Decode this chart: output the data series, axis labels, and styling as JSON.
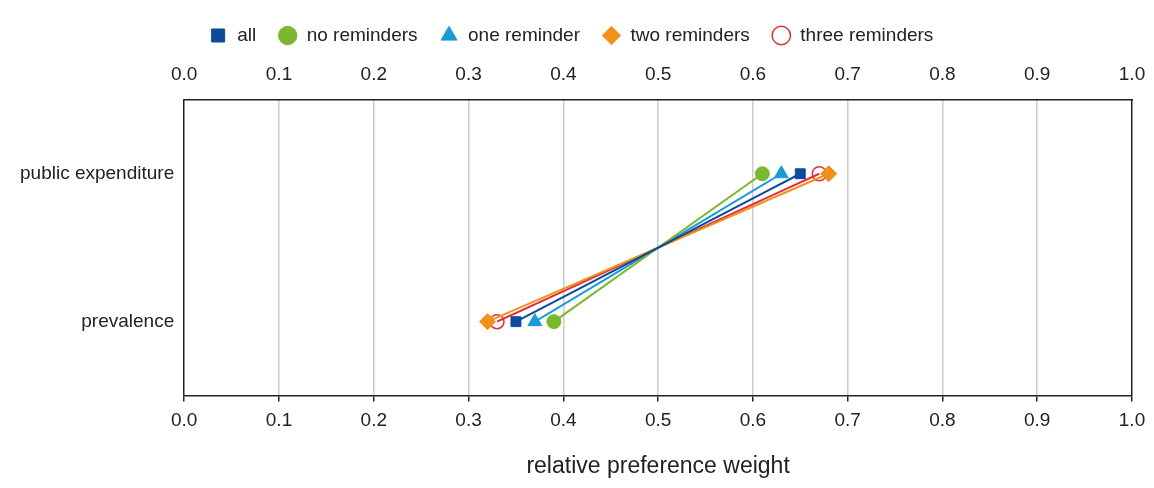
{
  "chart_data": {
    "type": "line",
    "orientation": "horizontal",
    "xlabel": "relative preference weight",
    "categories": [
      "public expenditure",
      "prevalence"
    ],
    "xlim": [
      0,
      1
    ],
    "xticks": [
      {
        "value": 0,
        "label": "0.0"
      },
      {
        "value": 0.1,
        "label": "0.1"
      },
      {
        "value": 0.2,
        "label": "0.2"
      },
      {
        "value": 0.3,
        "label": "0.3"
      },
      {
        "value": 0.4,
        "label": "0.4"
      },
      {
        "value": 0.5,
        "label": "0.5"
      },
      {
        "value": 0.6,
        "label": "0.6"
      },
      {
        "value": 0.7,
        "label": "0.7"
      },
      {
        "value": 0.8,
        "label": "0.8"
      },
      {
        "value": 0.9,
        "label": "0.9"
      },
      {
        "value": 1,
        "label": "1.0"
      }
    ],
    "x2lim": [
      0,
      1
    ],
    "x2ticks": [
      {
        "value": 0,
        "label": "0.0"
      },
      {
        "value": 0.1,
        "label": "0.1"
      },
      {
        "value": 0.2,
        "label": "0.2"
      },
      {
        "value": 0.3,
        "label": "0.3"
      },
      {
        "value": 0.4,
        "label": "0.4"
      },
      {
        "value": 0.5,
        "label": "0.5"
      },
      {
        "value": 0.6,
        "label": "0.6"
      },
      {
        "value": 0.7,
        "label": "0.7"
      },
      {
        "value": 0.8,
        "label": "0.8"
      },
      {
        "value": 0.9,
        "label": "0.9"
      },
      {
        "value": 1,
        "label": "1.0"
      }
    ],
    "grid": "x",
    "legend": "top",
    "line_style": "solid",
    "series": [
      {
        "name": "all",
        "color": "#0d4a9a",
        "marker": "square",
        "values": [
          0.65,
          0.35
        ]
      },
      {
        "name": "no reminders",
        "color": "#7ab82e",
        "marker": "circle",
        "values": [
          0.61,
          0.39
        ]
      },
      {
        "name": "one reminder",
        "color": "#1b9ad6",
        "marker": "triangle",
        "values": [
          0.63,
          0.37
        ]
      },
      {
        "name": "two reminders",
        "color": "#f39019",
        "marker": "diamond",
        "values": [
          0.68,
          0.32
        ]
      },
      {
        "name": "three reminders",
        "color": "#e0303a",
        "marker": "open circle",
        "values": [
          0.67,
          0.33
        ]
      }
    ]
  }
}
